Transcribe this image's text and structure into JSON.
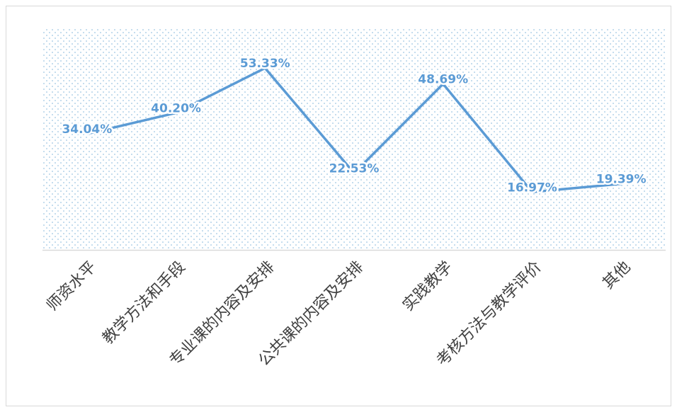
{
  "chart_data": {
    "type": "line",
    "categories": [
      "师资水平",
      "教学方法和手段",
      "专业课的内容及安排",
      "公共课的内容及安排",
      "实践教学",
      "考核方法与教学评价",
      "其他"
    ],
    "series": [
      {
        "color": "#5b9bd5",
        "values": [
          34.04,
          40.2,
          53.33,
          22.53,
          48.69,
          16.97,
          19.39
        ],
        "value_labels": [
          "34.04%",
          "40.20%",
          "53.33%",
          "22.53%",
          "48.69%",
          "16.97%",
          "19.39%"
        ]
      }
    ],
    "ylim": [
      0,
      65
    ]
  }
}
